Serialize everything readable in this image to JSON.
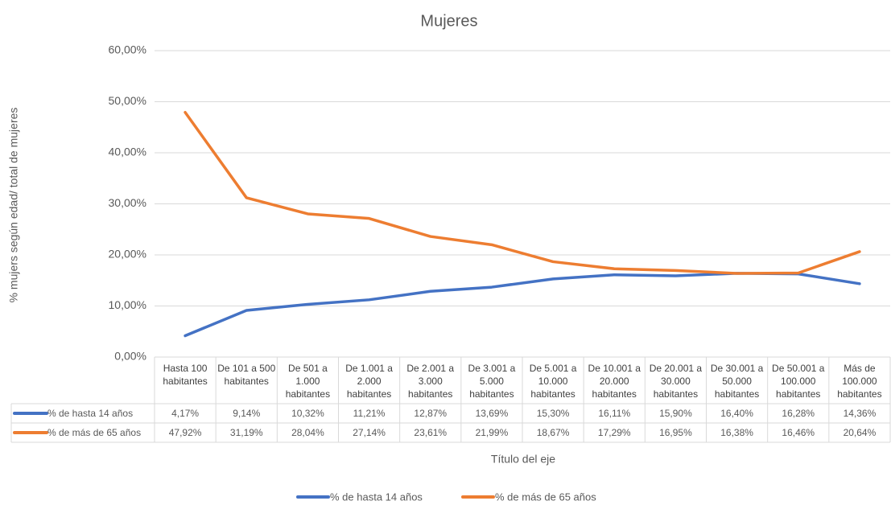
{
  "chart_data": {
    "type": "line",
    "title": "Mujeres",
    "x_label": "Título del eje",
    "y_label": "% mujers según edad/ total de mujeres",
    "categories": [
      "Hasta 100 habitantes",
      "De 101 a 500 habitantes",
      "De 501 a 1.000 habitantes",
      "De 1.001 a 2.000 habitantes",
      "De 2.001 a 3.000 habitantes",
      "De 3.001 a 5.000 habitantes",
      "De 5.001 a 10.000 habitantes",
      "De 10.001 a 20.000 habitantes",
      "De 20.001 a 30.000 habitantes",
      "De 30.001 a 50.000 habitantes",
      "De 50.001 a 100.000 habitantes",
      "Más de 100.000 habitantes"
    ],
    "series": [
      {
        "name": "% de hasta 14 años",
        "color": "#4472c4",
        "values": [
          4.17,
          9.14,
          10.32,
          11.21,
          12.87,
          13.69,
          15.3,
          16.11,
          15.9,
          16.4,
          16.28,
          14.36
        ],
        "value_labels": [
          "4,17%",
          "9,14%",
          "10,32%",
          "11,21%",
          "12,87%",
          "13,69%",
          "15,30%",
          "16,11%",
          "15,90%",
          "16,40%",
          "16,28%",
          "14,36%"
        ]
      },
      {
        "name": "% de más de 65 años",
        "color": "#ed7d31",
        "values": [
          47.92,
          31.19,
          28.04,
          27.14,
          23.61,
          21.99,
          18.67,
          17.29,
          16.95,
          16.38,
          16.46,
          20.64
        ],
        "value_labels": [
          "47,92%",
          "31,19%",
          "28,04%",
          "27,14%",
          "23,61%",
          "21,99%",
          "18,67%",
          "17,29%",
          "16,95%",
          "16,38%",
          "16,46%",
          "20,64%"
        ]
      }
    ],
    "ylim": [
      0,
      60
    ],
    "yticks": [
      {
        "value": 0,
        "label": "0,00%"
      },
      {
        "value": 10,
        "label": "10,00%"
      },
      {
        "value": 20,
        "label": "20,00%"
      },
      {
        "value": 30,
        "label": "30,00%"
      },
      {
        "value": 40,
        "label": "40,00%"
      },
      {
        "value": 50,
        "label": "50,00%"
      },
      {
        "value": 60,
        "label": "60,00%"
      }
    ],
    "grid": true,
    "legend": "bottom"
  }
}
